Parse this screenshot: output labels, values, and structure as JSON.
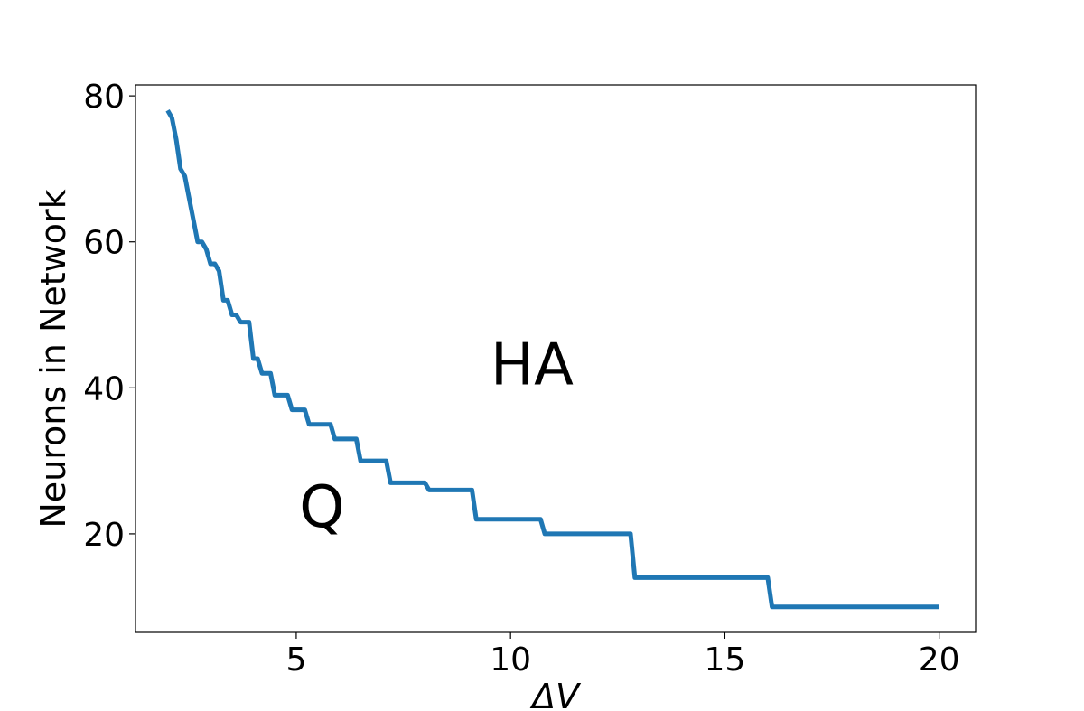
{
  "chart_data": {
    "type": "line",
    "title": "",
    "xlabel": "ΔV",
    "ylabel": "Neurons in Network",
    "xlim": [
      1.25,
      20.85
    ],
    "ylim": [
      6.5,
      81.5
    ],
    "xticks": [
      5,
      10,
      15,
      20
    ],
    "yticks": [
      20,
      40,
      60,
      80
    ],
    "grid": false,
    "legend": "none",
    "line_color": "#1f77b4",
    "annotations": [
      {
        "text": "HA",
        "x": 10.5,
        "y": 40.5
      },
      {
        "text": "Q",
        "x": 5.6,
        "y": 21.0
      }
    ],
    "series": [
      {
        "x": [
          2.0,
          2.1,
          2.2,
          2.3,
          2.4,
          2.5,
          2.6,
          2.7,
          2.8,
          2.9,
          3.0,
          3.1,
          3.2,
          3.3,
          3.4,
          3.5,
          3.6,
          3.7,
          3.8,
          3.9,
          4.0,
          4.1,
          4.2,
          4.3,
          4.4,
          4.5,
          4.6,
          4.7,
          4.8,
          4.9,
          5.0,
          5.1,
          5.2,
          5.3,
          5.4,
          5.5,
          5.6,
          5.7,
          5.8,
          5.9,
          6.0,
          6.1,
          6.2,
          6.3,
          6.4,
          6.5,
          6.6,
          6.7,
          6.8,
          6.9,
          7.0,
          7.1,
          7.2,
          7.3,
          7.6,
          7.9,
          8.0,
          8.1,
          8.5,
          8.8,
          9.0,
          9.1,
          9.2,
          9.5,
          10.0,
          10.5,
          10.7,
          10.8,
          11.0,
          11.5,
          12.0,
          12.5,
          12.8,
          12.9,
          13.0,
          14.0,
          15.0,
          16.0,
          16.1,
          16.2,
          17.0,
          18.0,
          19.0,
          20.0
        ],
        "values": [
          78,
          77,
          74,
          70,
          69,
          66,
          63,
          60,
          60,
          59,
          57,
          57,
          56,
          52,
          52,
          50,
          50,
          49,
          49,
          49,
          44,
          44,
          42,
          42,
          42,
          39,
          39,
          39,
          39,
          37,
          37,
          37,
          37,
          35,
          35,
          35,
          35,
          35,
          35,
          33,
          33,
          33,
          33,
          33,
          33,
          30,
          30,
          30,
          30,
          30,
          30,
          30,
          27,
          27,
          27,
          27,
          27,
          26,
          26,
          26,
          26,
          26,
          22,
          22,
          22,
          22,
          22,
          20,
          20,
          20,
          20,
          20,
          20,
          14,
          14,
          14,
          14,
          14,
          10,
          10,
          10,
          10,
          10,
          10
        ]
      }
    ]
  }
}
